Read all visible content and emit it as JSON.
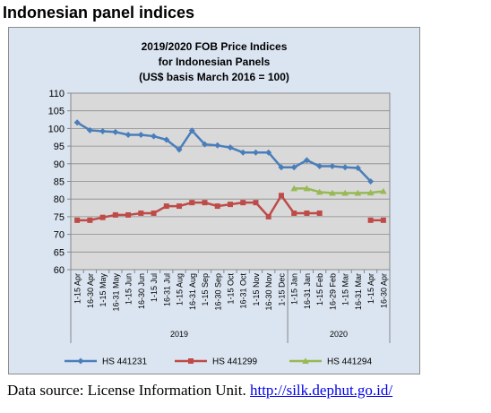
{
  "page": {
    "heading": "Indonesian panel indices",
    "source_text": "Data source: License Information Unit.",
    "source_link": "http://silk.dephut.go.id/"
  },
  "chart_data": {
    "type": "line",
    "title": "2019/2020 FOB Price Indices",
    "subtitle": "for Indonesian Panels",
    "subtitle2": "(US$ basis March 2016 = 100)",
    "ylim": [
      60,
      110
    ],
    "yticks": [
      60,
      65,
      70,
      75,
      80,
      85,
      90,
      95,
      100,
      105,
      110
    ],
    "grid": true,
    "legend_position": "bottom",
    "categories": [
      "1-15 Apr",
      "16-30 Apr",
      "1-15 May",
      "16-31 May",
      "1-15 Jun",
      "16-30 Jun",
      "1-15 Jul",
      "16-31 Jul",
      "1-15 Aug",
      "16-31 Aug",
      "1-15 Sep",
      "16-30 Sep",
      "1-15 Oct",
      "16-31 Oct",
      "1-15 Nov",
      "16-30 Nov",
      "1-15 Dec",
      "1-15 Jan",
      "16-31 Jan",
      "1-15 Feb",
      "16-29 Feb",
      "1-15 Mar",
      "16-31 Mar",
      "1-15 Apr",
      "16-30 Apr"
    ],
    "year_groups": [
      {
        "label": "2019",
        "start": 0,
        "end": 16
      },
      {
        "label": "2020",
        "start": 17,
        "end": 24
      }
    ],
    "series": [
      {
        "name": "HS 441231",
        "color": "#4a7ebb",
        "marker": "diamond",
        "values": [
          101.7,
          99.5,
          99.2,
          99.0,
          98.2,
          98.2,
          97.8,
          96.8,
          94.0,
          99.4,
          95.5,
          95.2,
          94.6,
          93.2,
          93.2,
          93.2,
          89.0,
          89.0,
          91.0,
          89.3,
          89.3,
          89.0,
          88.8,
          85.0,
          null
        ]
      },
      {
        "name": "HS 441299",
        "color": "#be4b48",
        "marker": "square",
        "values": [
          74.0,
          74.0,
          74.8,
          75.5,
          75.5,
          76.0,
          76.0,
          78.0,
          78.0,
          79.0,
          79.0,
          78.0,
          78.5,
          79.0,
          79.0,
          75.0,
          81.0,
          76.0,
          76.0,
          76.0,
          null,
          null,
          null,
          74.0,
          74.0
        ]
      },
      {
        "name": "HS 441294",
        "color": "#98b954",
        "marker": "triangle",
        "values": [
          null,
          null,
          null,
          null,
          null,
          null,
          null,
          null,
          null,
          null,
          null,
          null,
          null,
          null,
          null,
          null,
          null,
          83.0,
          83.0,
          82.0,
          81.7,
          81.7,
          81.7,
          81.8,
          82.2
        ]
      }
    ]
  }
}
